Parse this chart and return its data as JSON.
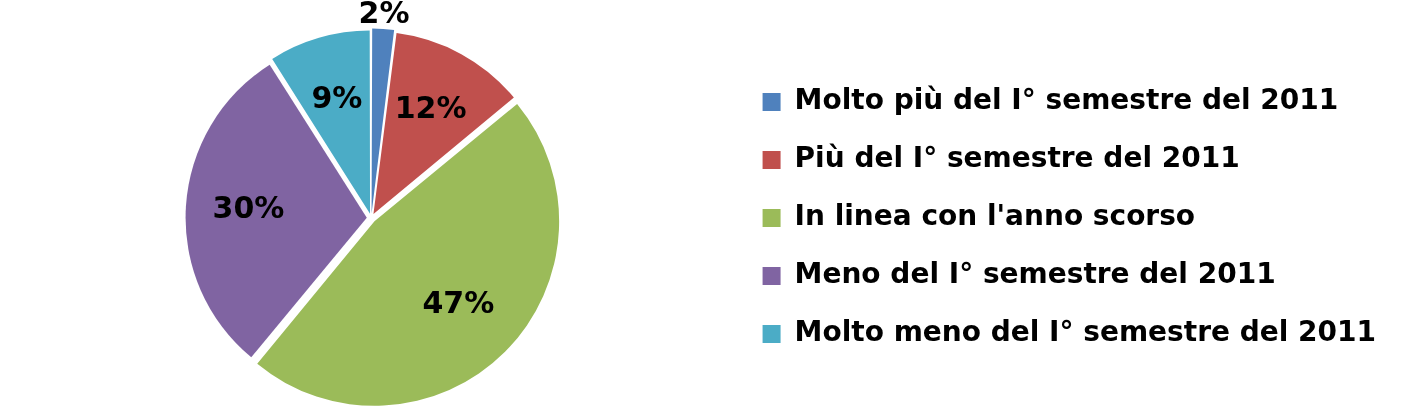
{
  "chart_data": {
    "type": "pie",
    "categories": [
      "Molto più del I° semestre del 2011",
      "Più del I° semestre del 2011",
      "In linea con l'anno scorso",
      "Meno del I° semestre del 2011",
      "Molto meno del I° semestre del 2011"
    ],
    "values": [
      2,
      12,
      47,
      30,
      9
    ],
    "colors": [
      "#4f81bd",
      "#c0504d",
      "#9bbb59",
      "#8064a2",
      "#4bacc6"
    ],
    "value_labels": [
      "2%",
      "12%",
      "47%",
      "30%",
      "9%"
    ],
    "legend": "right"
  }
}
